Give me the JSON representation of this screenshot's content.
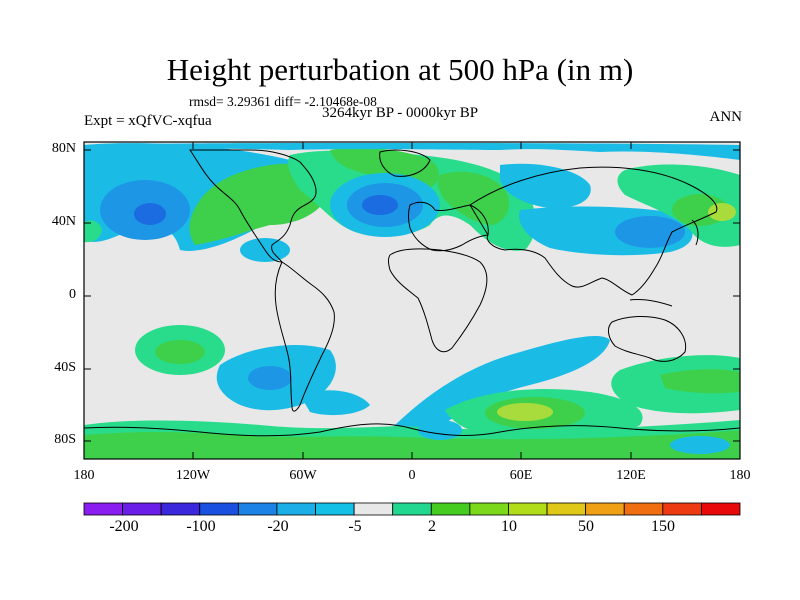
{
  "title": "Height perturbation at 500 hPa (in m)",
  "stats": "rmsd= 3.29361 diff= -2.10468e-08",
  "experiment": "Expt = xQfVC-xqfua",
  "period": "3264kyr BP - 0000kyr BP",
  "season": "ANN",
  "y_ticks": [
    "80N",
    "40N",
    "0",
    "40S",
    "80S"
  ],
  "x_ticks": [
    "180",
    "120W",
    "60W",
    "0",
    "60E",
    "120E",
    "180"
  ],
  "colorbar": {
    "labels": [
      "-200",
      "-100",
      "-20",
      "-5",
      "2",
      "10",
      "50",
      "150"
    ],
    "colors": [
      "#8a1ef0",
      "#6a1ee8",
      "#3c28dc",
      "#1a50e0",
      "#1c82e6",
      "#1caee6",
      "#15c0e6",
      "#e8e8e8",
      "#22d890",
      "#46cc20",
      "#7cd81a",
      "#b0dc18",
      "#e0c818",
      "#f0a014",
      "#f06e10",
      "#ee3a10",
      "#e80a08"
    ]
  },
  "map_colors": {
    "background": "#e8e8e8",
    "light_green": "#28dc8c",
    "green": "#3ed04a",
    "yellow_green": "#a8dc3c",
    "light_blue": "#1abce6",
    "blue": "#1e96e6",
    "dark_blue": "#1a6ce0"
  }
}
